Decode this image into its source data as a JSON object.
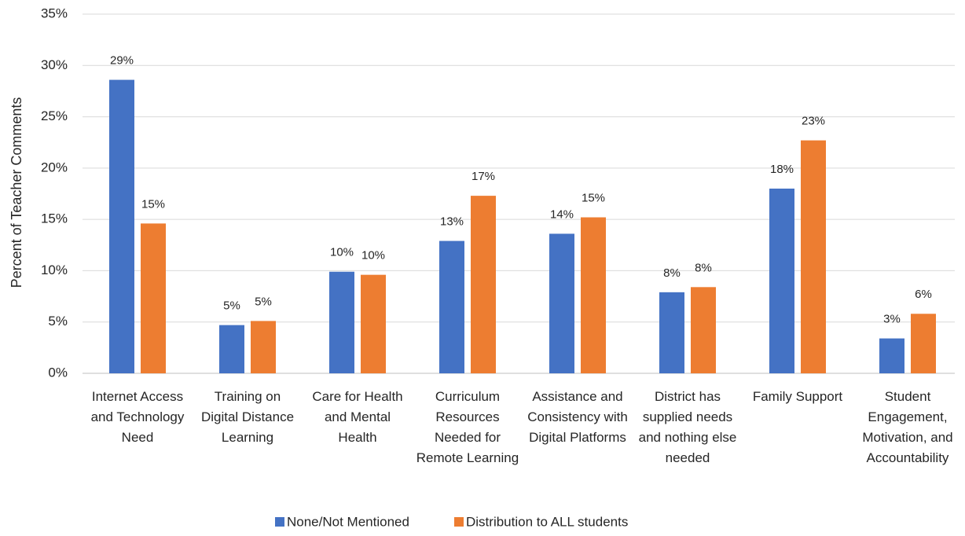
{
  "chart_data": {
    "type": "bar",
    "y_axis_label": "Percent of Teacher Comments",
    "categories": [
      "Internet Access and Technology Need",
      "Training on Digital Distance Learning",
      "Care for Health and Mental Health",
      "Curriculum Resources Needed for Remote Learning",
      "Assistance and Consistency with Digital Platforms",
      "District has supplied needs and nothing else needed",
      "Family Support",
      "Student Engagement, Motivation, and Accountability"
    ],
    "series": [
      {
        "name": "None/Not Mentioned",
        "color": "#4472c4",
        "values": [
          28.6,
          4.7,
          9.9,
          12.9,
          13.6,
          7.9,
          18.0,
          3.4
        ],
        "value_labels": [
          "29%",
          "5%",
          "10%",
          "13%",
          "14%",
          "8%",
          "18%",
          "3%"
        ]
      },
      {
        "name": "Distribution to ALL students",
        "color": "#ed7d31",
        "values": [
          14.6,
          5.1,
          9.6,
          17.3,
          15.2,
          8.4,
          22.7,
          5.8
        ],
        "value_labels": [
          "15%",
          "5%",
          "10%",
          "17%",
          "15%",
          "8%",
          "23%",
          "6%"
        ]
      }
    ],
    "ylim": [
      0,
      35
    ],
    "yticks": [
      {
        "value": 0,
        "label": "0%"
      },
      {
        "value": 5,
        "label": "5%"
      },
      {
        "value": 10,
        "label": "10%"
      },
      {
        "value": 15,
        "label": "15%"
      },
      {
        "value": 20,
        "label": "20%"
      },
      {
        "value": 25,
        "label": "25%"
      },
      {
        "value": 30,
        "label": "30%"
      },
      {
        "value": 35,
        "label": "35%"
      }
    ],
    "grid": true,
    "legend": "bottom"
  }
}
